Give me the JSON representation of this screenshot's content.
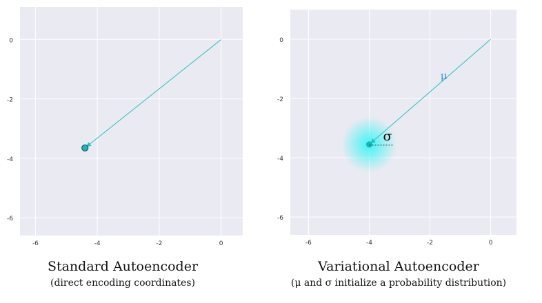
{
  "colors": {
    "plot_background": "#eaeaf2",
    "grid": "#ffffff",
    "vector": "#1fc4c4",
    "point_fill": "#19b7b7",
    "glow": "#40f5f5",
    "mu_label": "#3a8fd6"
  },
  "chart_data": [
    {
      "type": "scatter",
      "title": "",
      "xlabel": "",
      "ylabel": "",
      "xlim": [
        -6.5,
        0.7
      ],
      "ylim": [
        -6.6,
        1.1
      ],
      "grid": true,
      "xticks": [
        -6,
        -4,
        -2,
        0
      ],
      "yticks": [
        0,
        -2,
        -4,
        -6
      ],
      "xtick_labels": [
        "-6",
        "-4",
        "-2",
        "0"
      ],
      "ytick_labels": [
        "0",
        "-2",
        "-4",
        "-6"
      ],
      "point": {
        "x": -4.4,
        "y": -3.65
      },
      "vector": {
        "from": [
          0,
          0
        ],
        "to": [
          -4.4,
          -3.65
        ]
      },
      "caption": {
        "title": "Standard Autoencoder",
        "subtitle": "(direct encoding coordinates)"
      }
    },
    {
      "type": "scatter",
      "title": "",
      "xlabel": "",
      "ylabel": "",
      "xlim": [
        -6.6,
        0.85
      ],
      "ylim": [
        -6.6,
        1.0
      ],
      "grid": true,
      "xticks": [
        -6,
        -4,
        -2,
        0
      ],
      "yticks": [
        0,
        -2,
        -4,
        -6
      ],
      "xtick_labels": [
        "-6",
        "-4",
        "-2",
        "0"
      ],
      "ytick_labels": [
        "0",
        "-2",
        "-4",
        "-6"
      ],
      "point": {
        "x": -4.0,
        "y": -3.55
      },
      "vector": {
        "from": [
          0,
          0
        ],
        "to": [
          -4.0,
          -3.55
        ]
      },
      "sigma": 0.8,
      "annotations": {
        "mu": "μ",
        "sigma": "σ"
      },
      "caption": {
        "title": "Variational Autoencoder",
        "subtitle": "(μ and σ initialize a probability distribution)"
      }
    }
  ]
}
